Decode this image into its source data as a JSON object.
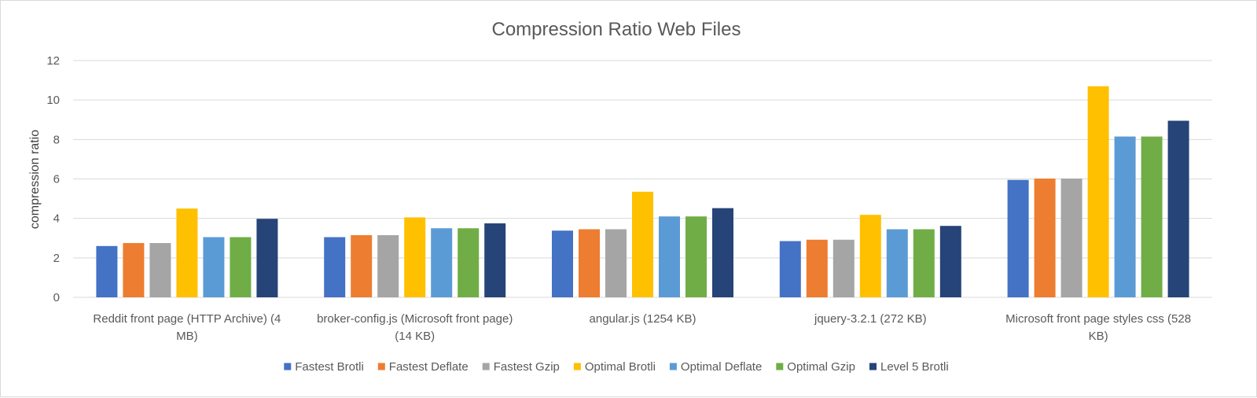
{
  "chart_data": {
    "type": "bar",
    "title": "Compression  Ratio Web Files",
    "xlabel": "",
    "ylabel": "compression ratio",
    "ylim": [
      0,
      12
    ],
    "yticks": [
      0,
      2,
      4,
      6,
      8,
      10,
      12
    ],
    "grid": true,
    "legend_position": "bottom",
    "categories": [
      [
        "Reddit front page (HTTP Archive) (4",
        "MB)"
      ],
      [
        "broker-config.js (Microsoft front page)",
        "(14 KB)"
      ],
      [
        "angular.js (1254 KB)"
      ],
      [
        "jquery-3.2.1 (272 KB)"
      ],
      [
        "Microsoft front page styles css (528",
        "KB)"
      ]
    ],
    "series": [
      {
        "name": "Fastest Brotli",
        "color": "#4472C4",
        "values": [
          2.6,
          3.05,
          3.38,
          2.85,
          5.95
        ]
      },
      {
        "name": "Fastest Deflate",
        "color": "#ED7D31",
        "values": [
          2.75,
          3.15,
          3.45,
          2.92,
          6.02
        ]
      },
      {
        "name": "Fastest Gzip",
        "color": "#A5A5A5",
        "values": [
          2.75,
          3.15,
          3.45,
          2.92,
          6.02
        ]
      },
      {
        "name": "Optimal Brotli",
        "color": "#FFC000",
        "values": [
          4.5,
          4.05,
          5.35,
          4.18,
          10.7
        ]
      },
      {
        "name": "Optimal Deflate",
        "color": "#5B9BD5",
        "values": [
          3.05,
          3.5,
          4.1,
          3.45,
          8.15
        ]
      },
      {
        "name": "Optimal Gzip",
        "color": "#70AD47",
        "values": [
          3.05,
          3.5,
          4.1,
          3.45,
          8.15
        ]
      },
      {
        "name": "Level 5 Brotli",
        "color": "#264478",
        "values": [
          3.98,
          3.75,
          4.52,
          3.62,
          8.95
        ]
      }
    ]
  }
}
